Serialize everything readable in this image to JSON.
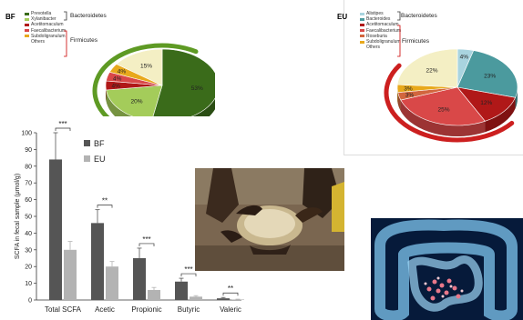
{
  "bf": {
    "tag": "BF",
    "legend": [
      {
        "label": "Prevotella",
        "color": "#3a6b1a"
      },
      {
        "label": "Xylanibacter",
        "color": "#a4cc5a"
      },
      {
        "label": "Acetitomaculum",
        "color": "#b01818"
      },
      {
        "label": "Faecalibacterium",
        "color": "#d94848"
      },
      {
        "label": "Subdoligranulum",
        "color": "#e8a91c"
      },
      {
        "label": "Others",
        "color": "#f4efc4"
      }
    ],
    "group1": "Bacteroidetes",
    "group2": "Firmicutes",
    "ring_color": "#5e9a24",
    "slices": [
      {
        "pct": 53,
        "label": "53%",
        "color": "#3a6b1a"
      },
      {
        "pct": 20,
        "label": "20%",
        "color": "#a4cc5a"
      },
      {
        "pct": 4,
        "label": "4%",
        "color": "#b01818"
      },
      {
        "pct": 4,
        "label": "4%",
        "color": "#d94848"
      },
      {
        "pct": 4,
        "label": "4%",
        "color": "#e8a91c"
      },
      {
        "pct": 15,
        "label": "15%",
        "color": "#f4efc4"
      }
    ]
  },
  "eu": {
    "tag": "EU",
    "legend": [
      {
        "label": "Alistipes",
        "color": "#a9d4df"
      },
      {
        "label": "Bacteroides",
        "color": "#4b9a9e"
      },
      {
        "label": "Acetitomaculum",
        "color": "#b01818"
      },
      {
        "label": "Faecalibacterium",
        "color": "#d94848"
      },
      {
        "label": "Roseburia",
        "color": "#d2663e"
      },
      {
        "label": "Subdoligranulum",
        "color": "#e8a91c"
      },
      {
        "label": "Others",
        "color": "#f4efc4"
      }
    ],
    "group1": "Bacteroidetes",
    "group2": "Firmicutes",
    "ring_color": "#cc1f1f",
    "slices": [
      {
        "pct": 4,
        "label": "4%",
        "color": "#a9d4df"
      },
      {
        "pct": 23,
        "label": "23%",
        "color": "#4b9a9e"
      },
      {
        "pct": 12,
        "label": "12%",
        "color": "#b01818"
      },
      {
        "pct": 25,
        "label": "25%",
        "color": "#d94848"
      },
      {
        "pct": 3,
        "label": "3%",
        "color": "#d2663e"
      },
      {
        "pct": 3,
        "label": "3%",
        "color": "#e8a91c"
      },
      {
        "pct": 22,
        "label": "22%",
        "color": "#f4efc4"
      }
    ]
  },
  "chart_data": {
    "type": "bar",
    "ylabel": "SCFA in fecal sample (μmol/g)",
    "ylim": [
      0,
      100
    ],
    "yticks": [
      0,
      10,
      20,
      30,
      40,
      50,
      60,
      70,
      80,
      90,
      100
    ],
    "categories": [
      "Total SCFA",
      "Acetic",
      "Propionic",
      "Butyric",
      "Valeric"
    ],
    "series": [
      {
        "name": "BF",
        "color": "#555555",
        "values": [
          84,
          46,
          25,
          11,
          1
        ],
        "errors": [
          16,
          8,
          6,
          2,
          0.5
        ]
      },
      {
        "name": "EU",
        "color": "#b3b3b3",
        "values": [
          30,
          20,
          6,
          2,
          0.3
        ],
        "errors": [
          5,
          3,
          1.5,
          0.6,
          0.2
        ]
      }
    ],
    "significance": [
      "***",
      "**",
      "***",
      "***",
      "**"
    ],
    "legend_position": "top-right",
    "grid": false
  }
}
